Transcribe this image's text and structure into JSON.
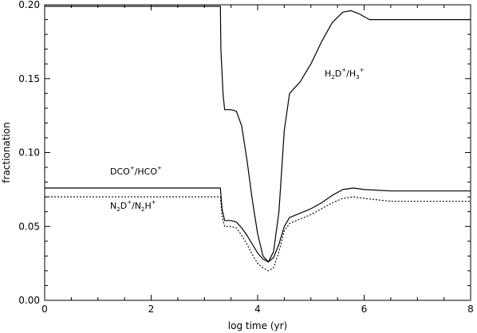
{
  "chart_data": {
    "type": "line",
    "xlabel": "log time (yr)",
    "ylabel": "fractionation",
    "xlim": [
      0,
      8
    ],
    "ylim": [
      0.0,
      0.2
    ],
    "xticks": [
      "0",
      "2",
      "4",
      "6",
      "8"
    ],
    "yticks": [
      "0.00",
      "0.05",
      "0.10",
      "0.15",
      "0.20"
    ],
    "grid": false,
    "legend": "none",
    "annotations": [
      {
        "base": "H",
        "sub1": "2",
        "mid": "D",
        "sup1": "+",
        "sep": "/H",
        "sub2": "3",
        "sup2": "+"
      },
      {
        "base": "DCO",
        "sub1": "",
        "mid": "",
        "sup1": "+",
        "sep": "/HCO",
        "sub2": "",
        "sup2": "+"
      },
      {
        "base": "N",
        "sub1": "2",
        "mid": "D",
        "sup1": "+",
        "sep": "/N",
        "sub2": "2",
        "mid2": "H",
        "sup2": "+"
      }
    ],
    "series": [
      {
        "x": [
          0,
          3.3,
          3.31,
          3.35,
          3.38,
          3.5,
          3.6,
          3.7,
          3.8,
          3.9,
          4.0,
          4.1,
          4.2,
          4.3,
          4.4,
          4.5,
          4.6,
          4.8,
          5.0,
          5.2,
          5.4,
          5.6,
          5.75,
          5.9,
          6.1,
          6.4,
          7.0,
          8.0
        ],
        "y": [
          0.199,
          0.199,
          0.17,
          0.14,
          0.129,
          0.129,
          0.128,
          0.118,
          0.095,
          0.068,
          0.045,
          0.03,
          0.026,
          0.033,
          0.06,
          0.115,
          0.14,
          0.148,
          0.16,
          0.175,
          0.188,
          0.195,
          0.196,
          0.194,
          0.19,
          0.19,
          0.19,
          0.19
        ],
        "style": "solid"
      },
      {
        "x": [
          0,
          3.3,
          3.33,
          3.38,
          3.5,
          3.6,
          3.7,
          3.8,
          3.9,
          4.0,
          4.1,
          4.2,
          4.3,
          4.4,
          4.5,
          4.6,
          4.8,
          5.0,
          5.2,
          5.4,
          5.6,
          5.8,
          6.0,
          6.5,
          7.0,
          8.0
        ],
        "y": [
          0.076,
          0.076,
          0.062,
          0.054,
          0.054,
          0.053,
          0.049,
          0.044,
          0.038,
          0.032,
          0.028,
          0.026,
          0.029,
          0.038,
          0.05,
          0.056,
          0.059,
          0.062,
          0.066,
          0.071,
          0.075,
          0.076,
          0.075,
          0.074,
          0.074,
          0.074
        ],
        "style": "solid"
      },
      {
        "x": [
          0,
          3.3,
          3.33,
          3.38,
          3.5,
          3.6,
          3.7,
          3.8,
          3.9,
          4.0,
          4.1,
          4.2,
          4.3,
          4.4,
          4.5,
          4.6,
          4.8,
          5.0,
          5.2,
          5.4,
          5.6,
          5.8,
          6.0,
          6.5,
          7.0,
          8.0
        ],
        "y": [
          0.07,
          0.07,
          0.057,
          0.05,
          0.05,
          0.049,
          0.044,
          0.038,
          0.031,
          0.025,
          0.022,
          0.02,
          0.022,
          0.033,
          0.047,
          0.052,
          0.055,
          0.058,
          0.062,
          0.066,
          0.069,
          0.07,
          0.069,
          0.067,
          0.067,
          0.067
        ],
        "style": "dotted"
      }
    ]
  }
}
